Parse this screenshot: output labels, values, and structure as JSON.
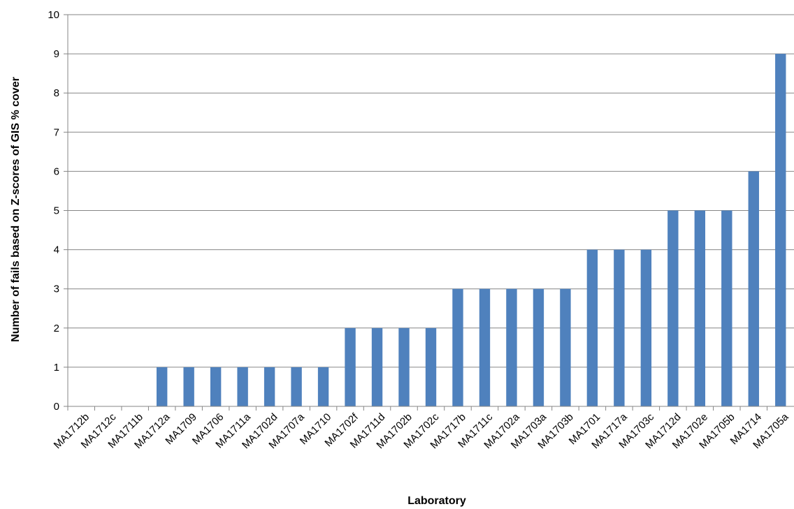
{
  "chart_data": {
    "type": "bar",
    "title": "",
    "xlabel": "Laboratory",
    "ylabel": "Number of fails based on Z-scores of GIS  % cover",
    "ylim": [
      0,
      10
    ],
    "ytick_step": 1,
    "grid": true,
    "legend": "none",
    "bar_color": "#4f81bd",
    "categories": [
      "MA1712b",
      "MA1712c",
      "MA1711b",
      "MA1712a",
      "MA1709",
      "MA1706",
      "MA1711a",
      "MA1702d",
      "MA1707a",
      "MA1710",
      "MA1702f",
      "MA1711d",
      "MA1702b",
      "MA1702c",
      "MA1717b",
      "MA1711c",
      "MA1702a",
      "MA1703a",
      "MA1703b",
      "MA1701",
      "MA1717a",
      "MA1703c",
      "MA1712d",
      "MA1702e",
      "MA1705b",
      "MA1714",
      "MA1705a"
    ],
    "values": [
      0,
      0,
      0,
      1,
      1,
      1,
      1,
      1,
      1,
      1,
      2,
      2,
      2,
      2,
      3,
      3,
      3,
      3,
      3,
      4,
      4,
      4,
      5,
      5,
      5,
      6,
      9
    ]
  }
}
